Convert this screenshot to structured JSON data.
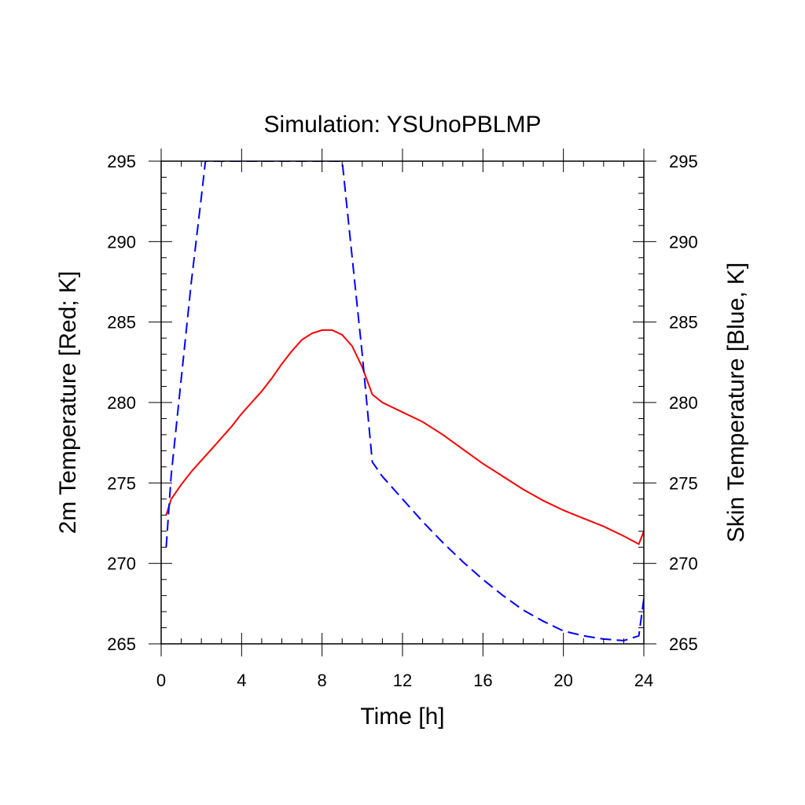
{
  "chart_data": {
    "type": "line",
    "title": "Simulation: YSUnoPBLMP",
    "xlabel": "Time [h]",
    "ylabel_left": "2m Temperature [Red; K]",
    "ylabel_right": "Skin Temperature [Blue, K]",
    "xlim": [
      0,
      24
    ],
    "ylim": [
      265,
      295
    ],
    "xticks": [
      0,
      4,
      8,
      12,
      16,
      20,
      24
    ],
    "yticks": [
      265,
      270,
      275,
      280,
      285,
      290,
      295
    ],
    "grid": false,
    "colors": {
      "t2m": "#ff0000",
      "tskin": "#0000ff"
    },
    "series": [
      {
        "axis": "left",
        "style": "solid",
        "color": "#ff0000",
        "x": [
          0.25,
          0.5,
          1,
          1.5,
          2,
          2.5,
          3,
          3.5,
          4,
          4.5,
          5,
          5.5,
          6,
          6.5,
          7,
          7.5,
          8,
          8.5,
          9,
          9.5,
          10,
          10.5,
          11,
          12,
          13,
          14,
          15,
          16,
          17,
          18,
          19,
          20,
          21,
          22,
          23,
          23.75,
          24
        ],
        "y": [
          273.0,
          274.0,
          274.9,
          275.7,
          276.4,
          277.1,
          277.8,
          278.5,
          279.3,
          280.0,
          280.7,
          281.5,
          282.4,
          283.2,
          283.9,
          284.3,
          284.5,
          284.5,
          284.2,
          283.5,
          282.2,
          280.5,
          280.0,
          279.4,
          278.8,
          278.0,
          277.1,
          276.2,
          275.4,
          274.6,
          273.9,
          273.3,
          272.8,
          272.3,
          271.7,
          271.2,
          272.0
        ]
      },
      {
        "axis": "right",
        "style": "dashed",
        "color": "#0000ff",
        "x": [
          0.25,
          0.5,
          1,
          1.5,
          2,
          2.2,
          9.0,
          9.5,
          10,
          10.5,
          11,
          12,
          13,
          14,
          15,
          16,
          17,
          18,
          19,
          20,
          21,
          22,
          23,
          23.75,
          24
        ],
        "y": [
          271.0,
          275.5,
          281.5,
          287.5,
          292.8,
          295.0,
          295.0,
          289.0,
          283.0,
          276.3,
          275.4,
          274.0,
          272.6,
          271.3,
          270.1,
          269.0,
          268.0,
          267.1,
          266.4,
          265.8,
          265.5,
          265.3,
          265.2,
          265.5,
          267.8
        ]
      }
    ]
  }
}
